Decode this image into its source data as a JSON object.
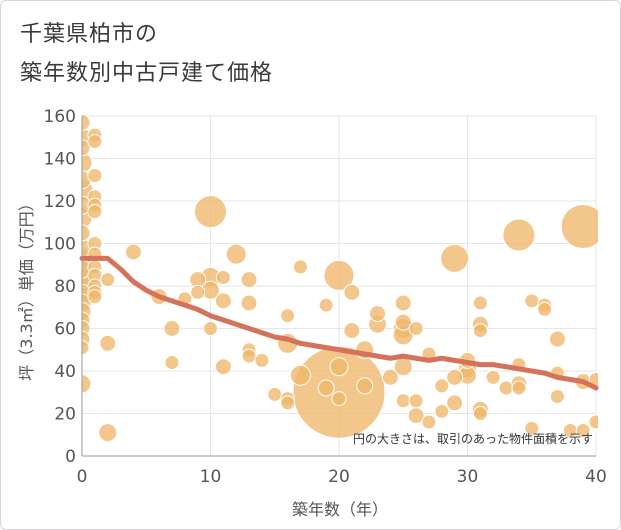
{
  "title_line1": "千葉県柏市の",
  "title_line2": "築年数別中古戸建て価格",
  "chart_data": {
    "type": "scatter",
    "title": "千葉県柏市の築年数別中古戸建て価格",
    "xlabel": "築年数（年）",
    "ylabel": "坪（3.3㎡）単価（万円）",
    "xlim": [
      0,
      40
    ],
    "ylim": [
      0,
      160
    ],
    "xticks": [
      "0",
      "10",
      "20",
      "30",
      "40"
    ],
    "yticks": [
      "0",
      "20",
      "40",
      "60",
      "80",
      "100",
      "120",
      "140",
      "160"
    ],
    "note": "円の大きさは、取引のあった物件面積を示す",
    "colors": {
      "bubble": "#f0b66a",
      "trend": "#d4725a",
      "grid": "#e6e6e6"
    },
    "bubbles": [
      {
        "x": 0,
        "y": 157,
        "s": 8
      },
      {
        "x": 0,
        "y": 150,
        "s": 9
      },
      {
        "x": 0,
        "y": 145,
        "s": 8
      },
      {
        "x": 0,
        "y": 138,
        "s": 10
      },
      {
        "x": 0,
        "y": 130,
        "s": 9
      },
      {
        "x": 0,
        "y": 125,
        "s": 11
      },
      {
        "x": 0,
        "y": 118,
        "s": 9
      },
      {
        "x": 0,
        "y": 112,
        "s": 10
      },
      {
        "x": 0,
        "y": 105,
        "s": 8
      },
      {
        "x": 0,
        "y": 98,
        "s": 9
      },
      {
        "x": 0,
        "y": 93,
        "s": 10
      },
      {
        "x": 0,
        "y": 88,
        "s": 9
      },
      {
        "x": 0,
        "y": 84,
        "s": 10
      },
      {
        "x": 0,
        "y": 80,
        "s": 11
      },
      {
        "x": 0,
        "y": 76,
        "s": 10
      },
      {
        "x": 0,
        "y": 72,
        "s": 9
      },
      {
        "x": 0,
        "y": 68,
        "s": 9
      },
      {
        "x": 0,
        "y": 64,
        "s": 8
      },
      {
        "x": 0,
        "y": 60,
        "s": 8
      },
      {
        "x": 0,
        "y": 55,
        "s": 8
      },
      {
        "x": 0,
        "y": 51,
        "s": 7
      },
      {
        "x": 0,
        "y": 34,
        "s": 9
      },
      {
        "x": 1,
        "y": 151,
        "s": 7
      },
      {
        "x": 1,
        "y": 148,
        "s": 7
      },
      {
        "x": 1,
        "y": 132,
        "s": 7
      },
      {
        "x": 1,
        "y": 122,
        "s": 7
      },
      {
        "x": 1,
        "y": 118,
        "s": 7
      },
      {
        "x": 1,
        "y": 115,
        "s": 7
      },
      {
        "x": 1,
        "y": 100,
        "s": 7
      },
      {
        "x": 1,
        "y": 95,
        "s": 7
      },
      {
        "x": 1,
        "y": 89,
        "s": 7
      },
      {
        "x": 1,
        "y": 85,
        "s": 7
      },
      {
        "x": 1,
        "y": 80,
        "s": 7
      },
      {
        "x": 1,
        "y": 77,
        "s": 7
      },
      {
        "x": 1,
        "y": 75,
        "s": 7
      },
      {
        "x": 2,
        "y": 83,
        "s": 7
      },
      {
        "x": 2,
        "y": 53,
        "s": 8
      },
      {
        "x": 2,
        "y": 11,
        "s": 9
      },
      {
        "x": 4,
        "y": 96,
        "s": 8
      },
      {
        "x": 6,
        "y": 75,
        "s": 8
      },
      {
        "x": 7,
        "y": 60,
        "s": 8
      },
      {
        "x": 7,
        "y": 44,
        "s": 7
      },
      {
        "x": 8,
        "y": 74,
        "s": 7
      },
      {
        "x": 9,
        "y": 83,
        "s": 8
      },
      {
        "x": 9,
        "y": 77,
        "s": 7
      },
      {
        "x": 10,
        "y": 115,
        "s": 16
      },
      {
        "x": 10,
        "y": 84,
        "s": 10
      },
      {
        "x": 10,
        "y": 78,
        "s": 9
      },
      {
        "x": 10,
        "y": 60,
        "s": 7
      },
      {
        "x": 11,
        "y": 84,
        "s": 7
      },
      {
        "x": 11,
        "y": 73,
        "s": 8
      },
      {
        "x": 11,
        "y": 42,
        "s": 8
      },
      {
        "x": 12,
        "y": 95,
        "s": 10
      },
      {
        "x": 13,
        "y": 83,
        "s": 8
      },
      {
        "x": 13,
        "y": 72,
        "s": 8
      },
      {
        "x": 13,
        "y": 50,
        "s": 7
      },
      {
        "x": 13,
        "y": 47,
        "s": 7
      },
      {
        "x": 14,
        "y": 45,
        "s": 7
      },
      {
        "x": 15,
        "y": 29,
        "s": 7
      },
      {
        "x": 16,
        "y": 66,
        "s": 7
      },
      {
        "x": 16,
        "y": 53,
        "s": 10
      },
      {
        "x": 16,
        "y": 27,
        "s": 7
      },
      {
        "x": 16,
        "y": 25,
        "s": 7
      },
      {
        "x": 17,
        "y": 89,
        "s": 7
      },
      {
        "x": 17,
        "y": 38,
        "s": 10
      },
      {
        "x": 19,
        "y": 71,
        "s": 7
      },
      {
        "x": 19,
        "y": 32,
        "s": 8
      },
      {
        "x": 20,
        "y": 85,
        "s": 15
      },
      {
        "x": 20,
        "y": 42,
        "s": 9
      },
      {
        "x": 20,
        "y": 30,
        "s": 46
      },
      {
        "x": 20,
        "y": 27,
        "s": 7
      },
      {
        "x": 21,
        "y": 77,
        "s": 8
      },
      {
        "x": 21,
        "y": 59,
        "s": 8
      },
      {
        "x": 22,
        "y": 50,
        "s": 9
      },
      {
        "x": 22,
        "y": 33,
        "s": 8
      },
      {
        "x": 23,
        "y": 67,
        "s": 8
      },
      {
        "x": 23,
        "y": 62,
        "s": 9
      },
      {
        "x": 24,
        "y": 37,
        "s": 8
      },
      {
        "x": 25,
        "y": 72,
        "s": 8
      },
      {
        "x": 25,
        "y": 63,
        "s": 8
      },
      {
        "x": 25,
        "y": 60,
        "s": 10
      },
      {
        "x": 25,
        "y": 57,
        "s": 10
      },
      {
        "x": 25,
        "y": 42,
        "s": 9
      },
      {
        "x": 25,
        "y": 26,
        "s": 7
      },
      {
        "x": 26,
        "y": 60,
        "s": 7
      },
      {
        "x": 26,
        "y": 26,
        "s": 7
      },
      {
        "x": 26,
        "y": 19,
        "s": 8
      },
      {
        "x": 27,
        "y": 48,
        "s": 7
      },
      {
        "x": 27,
        "y": 16,
        "s": 7
      },
      {
        "x": 28,
        "y": 33,
        "s": 7
      },
      {
        "x": 28,
        "y": 21,
        "s": 7
      },
      {
        "x": 29,
        "y": 93,
        "s": 14
      },
      {
        "x": 29,
        "y": 37,
        "s": 8
      },
      {
        "x": 29,
        "y": 25,
        "s": 8
      },
      {
        "x": 30,
        "y": 45,
        "s": 8
      },
      {
        "x": 30,
        "y": 41,
        "s": 9
      },
      {
        "x": 30,
        "y": 38,
        "s": 9
      },
      {
        "x": 31,
        "y": 72,
        "s": 7
      },
      {
        "x": 31,
        "y": 62,
        "s": 8
      },
      {
        "x": 31,
        "y": 59,
        "s": 7
      },
      {
        "x": 31,
        "y": 22,
        "s": 8
      },
      {
        "x": 31,
        "y": 20,
        "s": 7
      },
      {
        "x": 32,
        "y": 37,
        "s": 7
      },
      {
        "x": 33,
        "y": 32,
        "s": 7
      },
      {
        "x": 34,
        "y": 104,
        "s": 16
      },
      {
        "x": 34,
        "y": 43,
        "s": 7
      },
      {
        "x": 34,
        "y": 34,
        "s": 8
      },
      {
        "x": 34,
        "y": 32,
        "s": 7
      },
      {
        "x": 35,
        "y": 73,
        "s": 7
      },
      {
        "x": 35,
        "y": 13,
        "s": 7
      },
      {
        "x": 36,
        "y": 71,
        "s": 7
      },
      {
        "x": 36,
        "y": 69,
        "s": 7
      },
      {
        "x": 37,
        "y": 55,
        "s": 8
      },
      {
        "x": 37,
        "y": 39,
        "s": 7
      },
      {
        "x": 37,
        "y": 28,
        "s": 7
      },
      {
        "x": 38,
        "y": 12,
        "s": 7
      },
      {
        "x": 39,
        "y": 108,
        "s": 22
      },
      {
        "x": 39,
        "y": 35,
        "s": 8
      },
      {
        "x": 39,
        "y": 12,
        "s": 7
      },
      {
        "x": 40,
        "y": 36,
        "s": 7
      },
      {
        "x": 40,
        "y": 16,
        "s": 7
      }
    ],
    "trend": {
      "x": [
        0,
        1,
        2,
        3,
        4,
        5,
        6,
        7,
        8,
        9,
        10,
        11,
        12,
        13,
        14,
        15,
        16,
        17,
        18,
        19,
        20,
        21,
        22,
        23,
        24,
        25,
        26,
        27,
        28,
        29,
        30,
        31,
        32,
        33,
        34,
        35,
        36,
        37,
        38,
        39,
        40
      ],
      "y": [
        93,
        93,
        93,
        88,
        82,
        78,
        75,
        73,
        71,
        69,
        66,
        64,
        62,
        60,
        58,
        56,
        55,
        53,
        52,
        51,
        50,
        49,
        48,
        47,
        46,
        47,
        46,
        45,
        46,
        45,
        44,
        43,
        43,
        42,
        41,
        40,
        39,
        37,
        36,
        35,
        32
      ]
    }
  }
}
